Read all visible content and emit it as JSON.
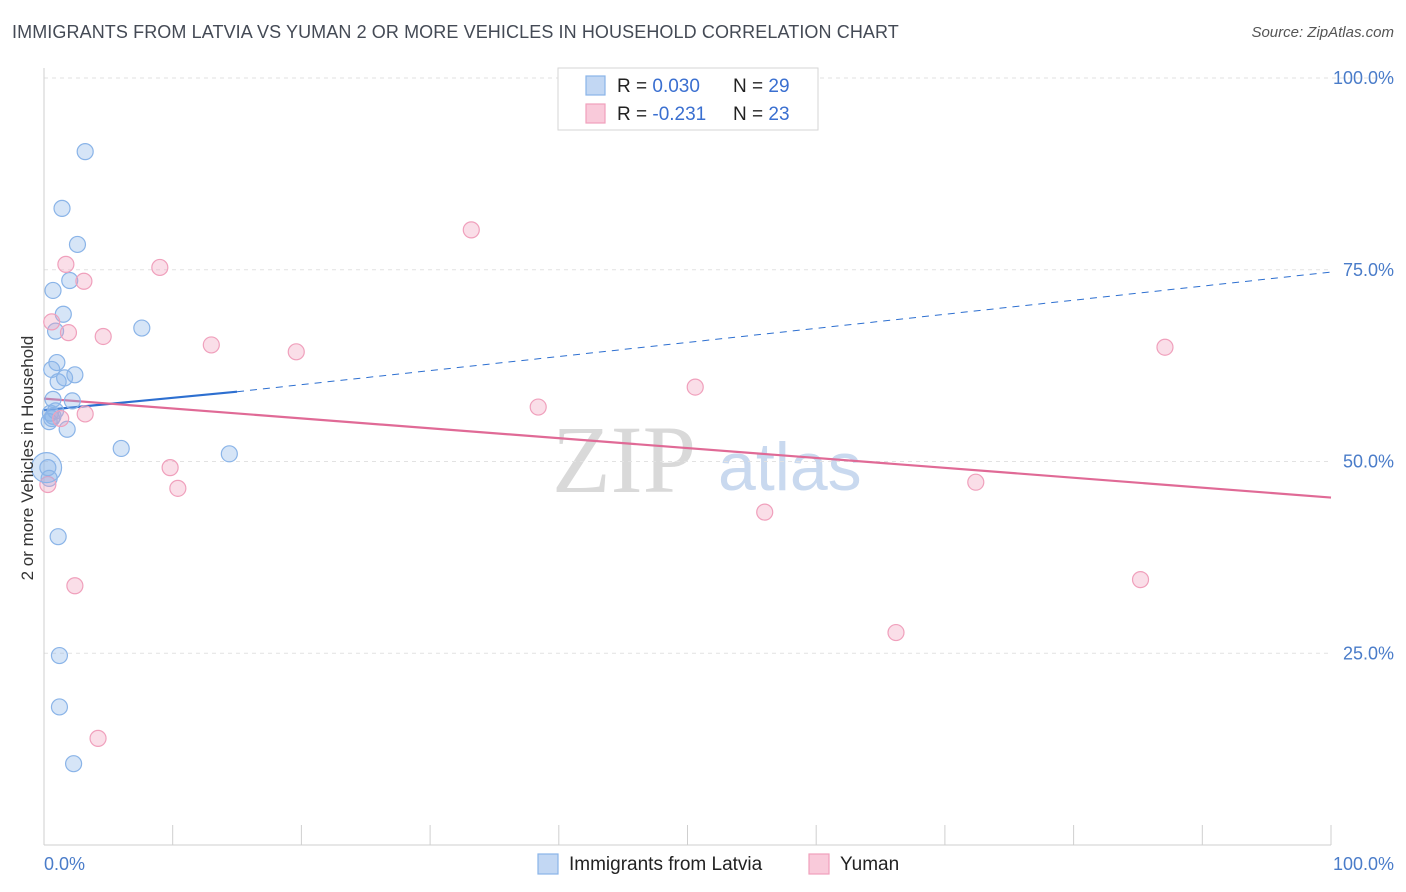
{
  "title": "IMMIGRANTS FROM LATVIA VS YUMAN 2 OR MORE VEHICLES IN HOUSEHOLD CORRELATION CHART",
  "source": "Source: ZipAtlas.com",
  "watermark": {
    "zip": "ZIP",
    "atlas": "atlas"
  },
  "colors": {
    "blue": "#8ab4e8",
    "pink": "#f0a0bc",
    "blue_line": "#2d6fd0",
    "pink_line": "#e06a96",
    "tick": "#4a7cc9"
  },
  "legend_top": [
    {
      "r_label": "R = ",
      "r_value": "0.030",
      "n_label": "N = ",
      "n_value": "29"
    },
    {
      "r_label": "R = ",
      "r_value": "-0.231",
      "n_label": "N = ",
      "n_value": "23"
    }
  ],
  "chart_data": {
    "type": "scatter",
    "title": "IMMIGRANTS FROM LATVIA VS YUMAN 2 OR MORE VEHICLES IN HOUSEHOLD CORRELATION CHART",
    "xlabel": "",
    "ylabel": "2 or more Vehicles in Household",
    "xlim": [
      0,
      100
    ],
    "ylim": [
      0,
      100
    ],
    "x_tick_labels": [
      "0.0%",
      "100.0%"
    ],
    "y_ticks": [
      25,
      50,
      75,
      100
    ],
    "y_tick_labels": [
      "25.0%",
      "50.0%",
      "75.0%",
      "100.0%"
    ],
    "grid": true,
    "legend_position": "bottom-center",
    "series": [
      {
        "name": "Immigrants from Latvia",
        "color": "#8ab4e8",
        "points": [
          {
            "x": 3.2,
            "y": 90.4
          },
          {
            "x": 1.4,
            "y": 83.0
          },
          {
            "x": 2.6,
            "y": 78.3
          },
          {
            "x": 2.0,
            "y": 73.6
          },
          {
            "x": 0.7,
            "y": 72.3
          },
          {
            "x": 1.5,
            "y": 69.2
          },
          {
            "x": 7.6,
            "y": 67.4
          },
          {
            "x": 0.9,
            "y": 67.0
          },
          {
            "x": 1.0,
            "y": 62.9
          },
          {
            "x": 0.6,
            "y": 62.0
          },
          {
            "x": 2.4,
            "y": 61.3
          },
          {
            "x": 1.6,
            "y": 60.9
          },
          {
            "x": 1.1,
            "y": 60.4
          },
          {
            "x": 0.7,
            "y": 58.1
          },
          {
            "x": 2.2,
            "y": 57.9
          },
          {
            "x": 0.9,
            "y": 56.6
          },
          {
            "x": 0.5,
            "y": 56.3
          },
          {
            "x": 0.7,
            "y": 55.9
          },
          {
            "x": 0.4,
            "y": 55.2
          },
          {
            "x": 1.8,
            "y": 54.2
          },
          {
            "x": 6.0,
            "y": 51.7
          },
          {
            "x": 14.4,
            "y": 51.0
          },
          {
            "x": 0.3,
            "y": 49.2
          },
          {
            "x": 0.4,
            "y": 47.8
          },
          {
            "x": 1.1,
            "y": 40.2
          },
          {
            "x": 1.2,
            "y": 24.7
          },
          {
            "x": 1.2,
            "y": 18.0
          },
          {
            "x": 2.3,
            "y": 10.6
          },
          {
            "x": 0.6,
            "y": 55.6
          }
        ]
      },
      {
        "name": "Yuman",
        "color": "#f0a0bc",
        "points": [
          {
            "x": 33.2,
            "y": 80.2
          },
          {
            "x": 1.7,
            "y": 75.7
          },
          {
            "x": 9.0,
            "y": 75.3
          },
          {
            "x": 3.1,
            "y": 73.5
          },
          {
            "x": 0.6,
            "y": 68.2
          },
          {
            "x": 1.9,
            "y": 66.8
          },
          {
            "x": 4.6,
            "y": 66.3
          },
          {
            "x": 13.0,
            "y": 65.2
          },
          {
            "x": 19.6,
            "y": 64.3
          },
          {
            "x": 87.1,
            "y": 64.9
          },
          {
            "x": 50.6,
            "y": 59.7
          },
          {
            "x": 38.4,
            "y": 57.1
          },
          {
            "x": 3.2,
            "y": 56.2
          },
          {
            "x": 1.3,
            "y": 55.6
          },
          {
            "x": 9.8,
            "y": 49.2
          },
          {
            "x": 10.4,
            "y": 46.5
          },
          {
            "x": 0.3,
            "y": 47.0
          },
          {
            "x": 72.4,
            "y": 47.3
          },
          {
            "x": 56.0,
            "y": 43.4
          },
          {
            "x": 2.4,
            "y": 33.8
          },
          {
            "x": 85.2,
            "y": 34.6
          },
          {
            "x": 66.2,
            "y": 27.7
          },
          {
            "x": 4.2,
            "y": 13.9
          }
        ]
      }
    ],
    "trend_lines": [
      {
        "series": "Immigrants from Latvia",
        "x": [
          0,
          15
        ],
        "y": [
          56.7,
          59.1
        ],
        "style": "solid"
      },
      {
        "series": "Immigrants from Latvia",
        "x": [
          15,
          100
        ],
        "y": [
          59.1,
          74.7
        ],
        "style": "dashed"
      },
      {
        "series": "Yuman",
        "x": [
          0,
          100
        ],
        "y": [
          58.2,
          45.3
        ],
        "style": "solid"
      }
    ]
  }
}
